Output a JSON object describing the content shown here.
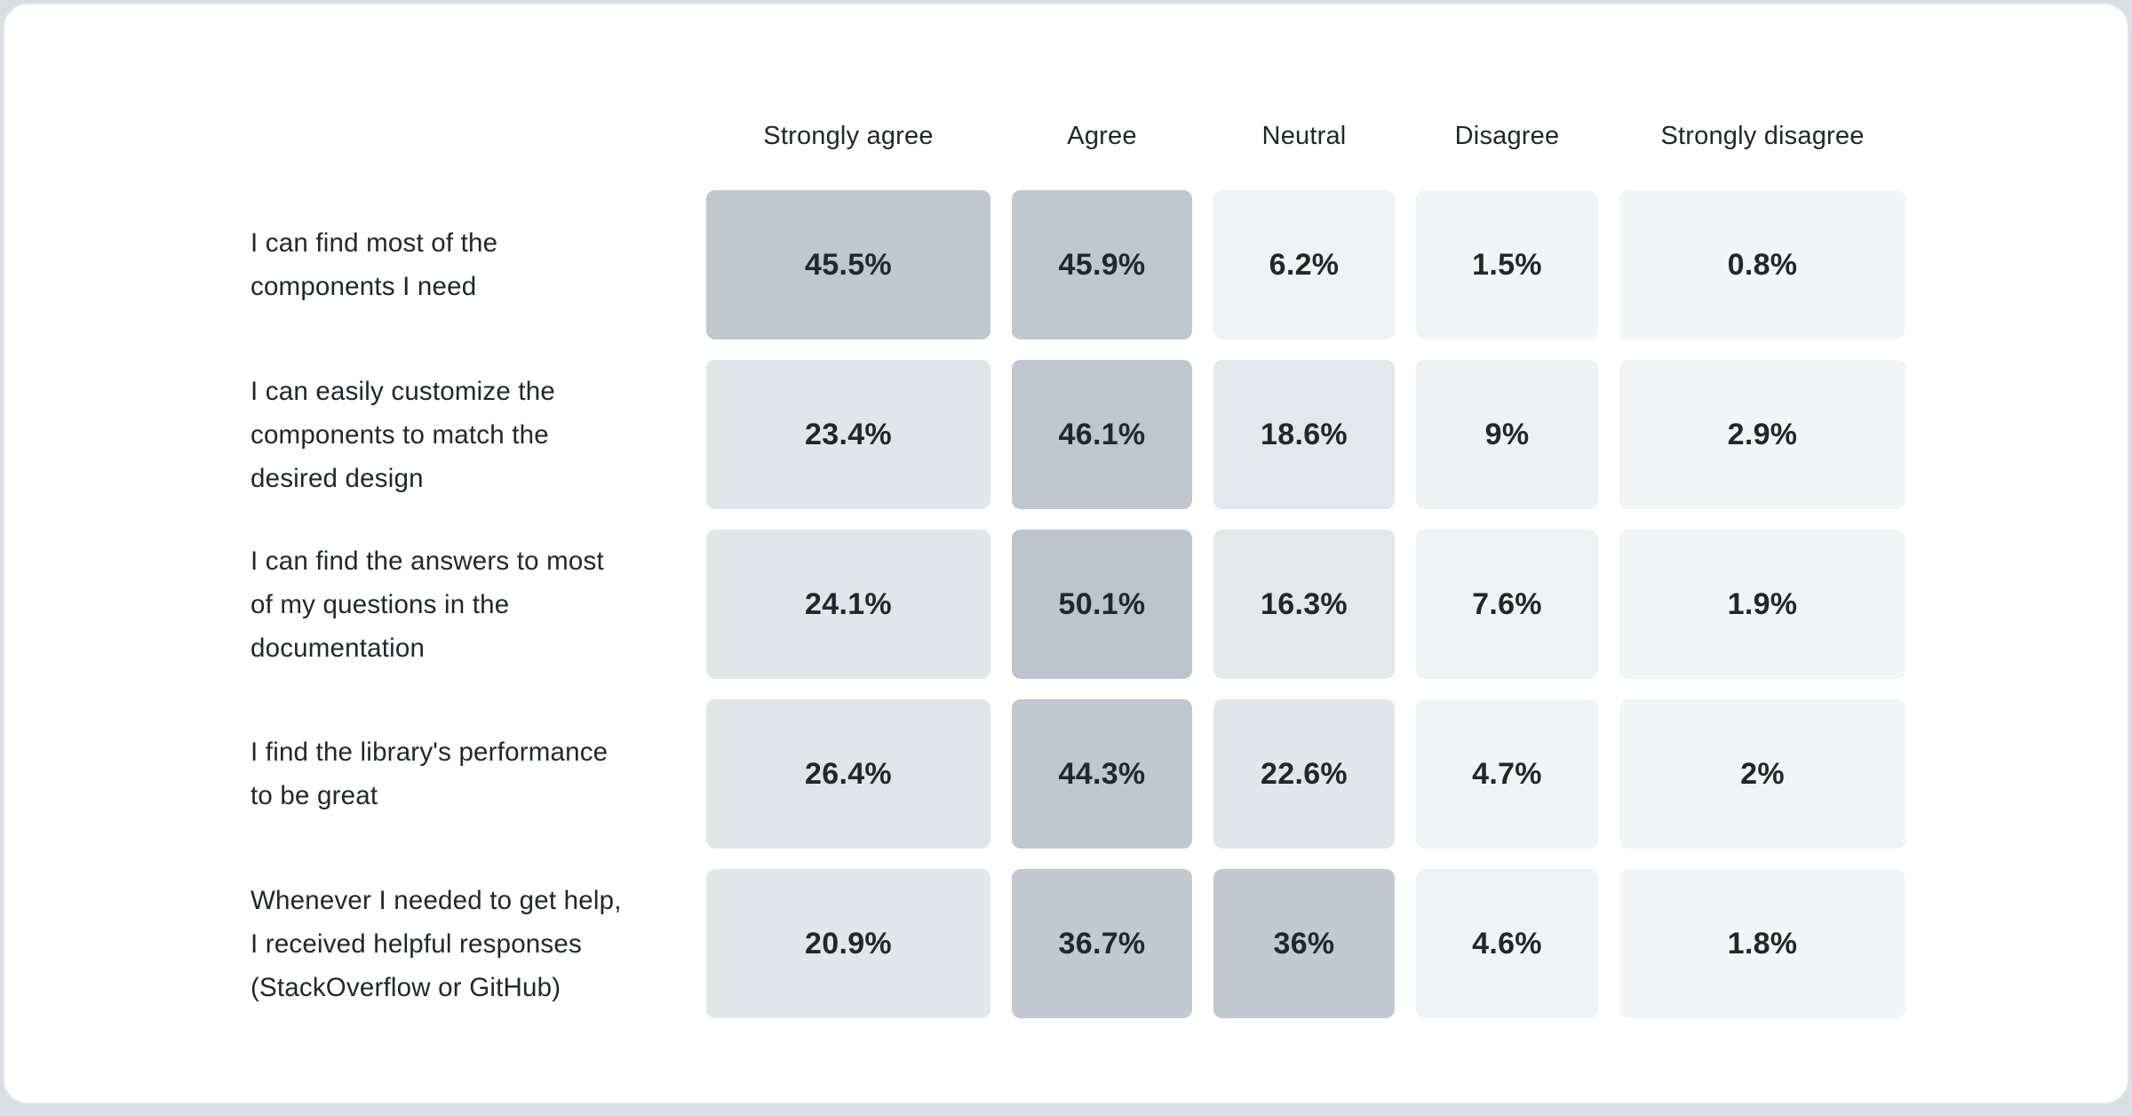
{
  "card": {
    "background": "#ffffff",
    "border_color": "#e2e5e9",
    "page_background": "#d9dee2"
  },
  "text_color": "#21272a",
  "chart_data": {
    "type": "heatmap",
    "legend_position": "none",
    "grid": "off",
    "value_scale": {
      "low_color": "#f3f6f8",
      "high_color": "#bdc4cd"
    },
    "columns": [
      "Strongly agree",
      "Agree",
      "Neutral",
      "Disagree",
      "Strongly disagree"
    ],
    "rows": [
      {
        "label": "I can find most of the\ncomponents I need",
        "values": [
          "45.5%",
          "45.9%",
          "6.2%",
          "1.5%",
          "0.8%"
        ],
        "values_num": [
          45.5,
          45.9,
          6.2,
          1.5,
          0.8
        ],
        "colors": [
          "#c0c7cf",
          "#c0c7cf",
          "#f0f3f6",
          "#f2f5f8",
          "#f3f6f8"
        ]
      },
      {
        "label": "I can easily customize the\ncomponents to match the\ndesired design",
        "values": [
          "23.4%",
          "46.1%",
          "18.6%",
          "9%",
          "2.9%"
        ],
        "values_num": [
          23.4,
          46.1,
          18.6,
          9,
          2.9
        ],
        "colors": [
          "#e2e6ea",
          "#bfc6ce",
          "#e4e7eb",
          "#eff2f5",
          "#f2f4f7"
        ]
      },
      {
        "label": "I can find the answers to most\nof my questions in the\ndocumentation",
        "values": [
          "24.1%",
          "50.1%",
          "16.3%",
          "7.6%",
          "1.9%"
        ],
        "values_num": [
          24.1,
          50.1,
          16.3,
          7.6,
          1.9
        ],
        "colors": [
          "#e2e5e9",
          "#bdc4cd",
          "#e4e8eb",
          "#f0f3f6",
          "#f2f5f8"
        ]
      },
      {
        "label": "I find the library's performance\nto be great",
        "values": [
          "26.4%",
          "44.3%",
          "22.6%",
          "4.7%",
          "2%"
        ],
        "values_num": [
          26.4,
          44.3,
          22.6,
          4.7,
          2
        ],
        "colors": [
          "#e1e5e9",
          "#c0c7cf",
          "#e3e6ea",
          "#f1f4f7",
          "#f2f5f8"
        ]
      },
      {
        "label": "Whenever I needed to get help,\nI received helpful responses\n(StackOverflow or GitHub)",
        "values": [
          "20.9%",
          "36.7%",
          "36%",
          "4.6%",
          "1.8%"
        ],
        "values_num": [
          20.9,
          36.7,
          36,
          4.6,
          1.8
        ],
        "colors": [
          "#e3e6ea",
          "#c2c9d0",
          "#c3c9d1",
          "#f1f4f7",
          "#f3f5f8"
        ]
      }
    ]
  }
}
